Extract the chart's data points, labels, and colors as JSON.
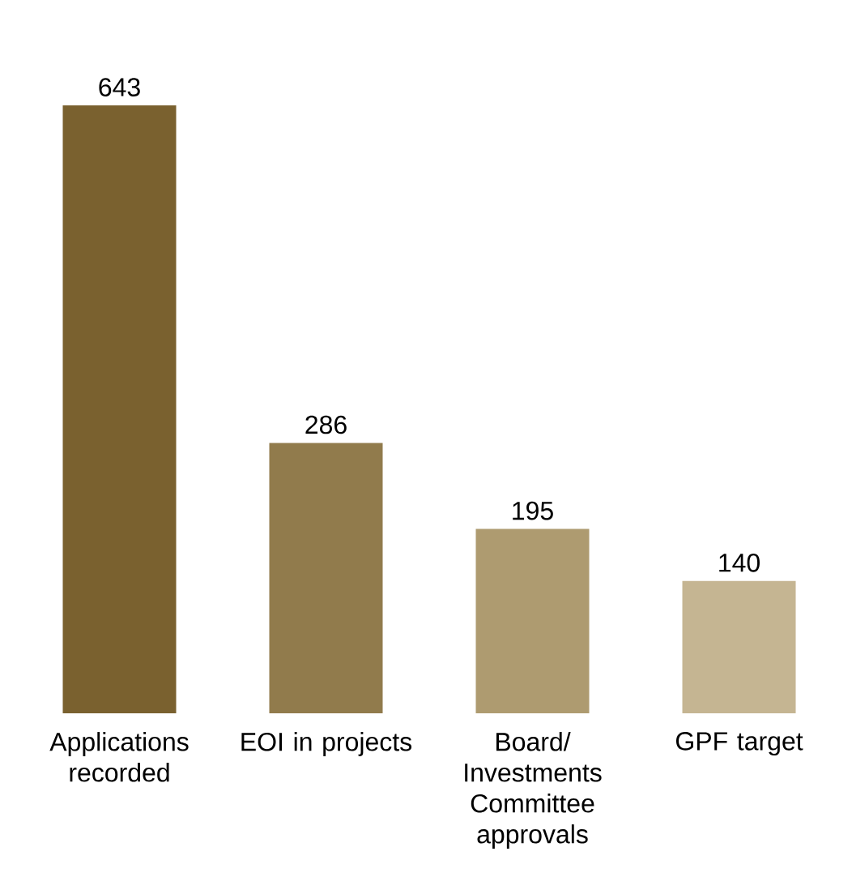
{
  "chart_data": {
    "type": "bar",
    "categories": [
      "Applications recorded",
      "EOI in projects",
      "Board/ Investments Committee approvals",
      "GPF target"
    ],
    "values": [
      643,
      286,
      195,
      140
    ],
    "colors": [
      "#7a612f",
      "#917b4c",
      "#ae9b70",
      "#c5b592"
    ],
    "data_labels": true
  }
}
